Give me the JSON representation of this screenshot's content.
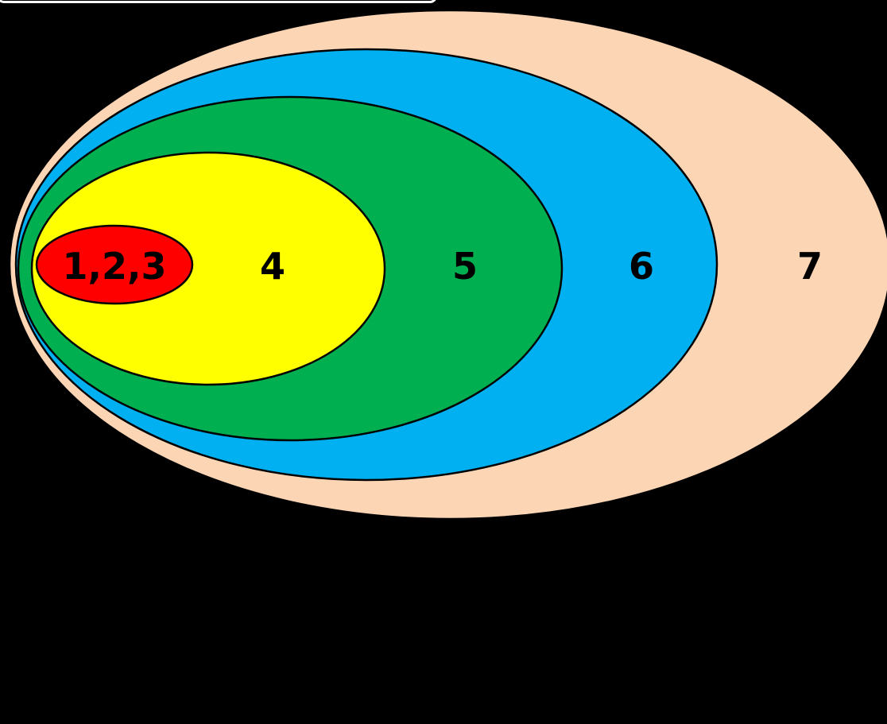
{
  "diagram": {
    "regions": [
      {
        "id": "region-7",
        "label": "7",
        "fill": "#FCD5B5"
      },
      {
        "id": "region-6",
        "label": "6",
        "fill": "#00B0F0"
      },
      {
        "id": "region-5",
        "label": "5",
        "fill": "#00B050"
      },
      {
        "id": "region-4",
        "label": "4",
        "fill": "#FFFF00"
      },
      {
        "id": "region-123",
        "label": "1,2,3",
        "fill": "#FF0000"
      }
    ],
    "outline_color": "#000000",
    "background_color": "#000000"
  }
}
